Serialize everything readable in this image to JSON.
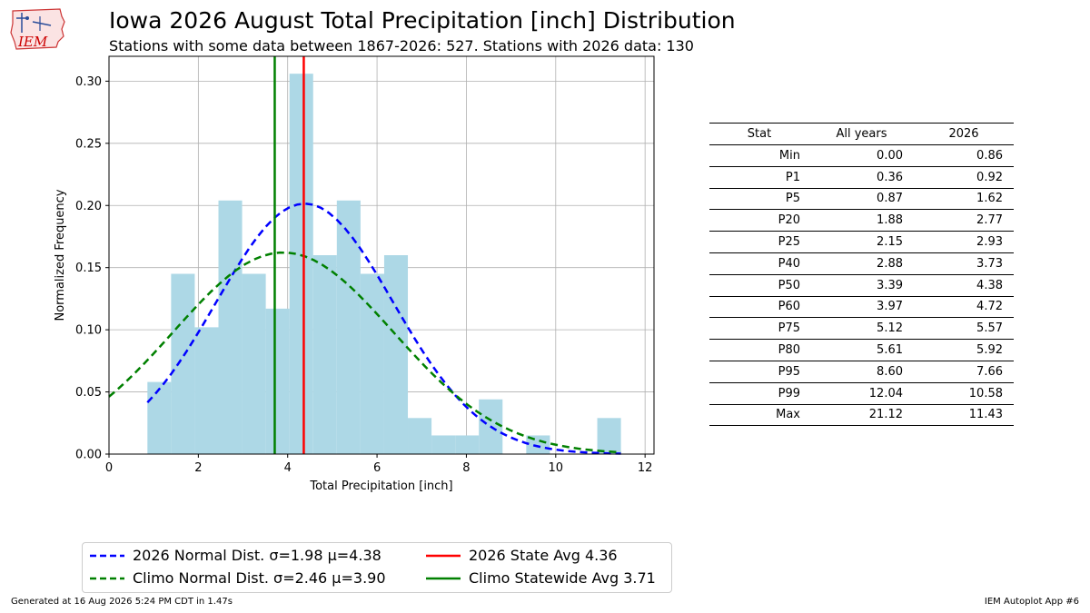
{
  "header": {
    "logo_text": "IEM",
    "title": "Iowa 2026 August Total Precipitation [inch] Distribution",
    "subtitle": "Stations with some data between 1867-2026: 527. Stations with 2026 data: 130"
  },
  "chart_data": {
    "type": "bar",
    "xlabel": "Total Precipitation [inch]",
    "ylabel": "Normalized Frequency",
    "xlim": [
      0,
      12.2
    ],
    "ylim": [
      0,
      0.32
    ],
    "xticks": [
      0,
      2,
      4,
      6,
      8,
      10,
      12
    ],
    "yticks": [
      "0.00",
      "0.05",
      "0.10",
      "0.15",
      "0.20",
      "0.25",
      "0.30"
    ],
    "grid": true,
    "histogram": {
      "bin_edges": [
        0.86,
        1.39,
        1.92,
        2.45,
        2.98,
        3.51,
        4.04,
        4.57,
        5.1,
        5.63,
        6.16,
        6.69,
        7.22,
        7.75,
        8.28,
        8.81,
        9.34,
        9.87,
        10.4,
        10.93,
        11.46
      ],
      "values": [
        0.058,
        0.145,
        0.102,
        0.204,
        0.145,
        0.117,
        0.306,
        0.16,
        0.204,
        0.145,
        0.16,
        0.029,
        0.015,
        0.015,
        0.044,
        0.0,
        0.015,
        0.0,
        0.0,
        0.029
      ],
      "color": "#add8e6"
    },
    "series": [
      {
        "name": "2026 Normal Dist. σ=1.98 μ=4.38",
        "kind": "normal",
        "mu": 4.38,
        "sigma": 1.98,
        "x_range": [
          0.86,
          11.46
        ],
        "color": "#0000ff",
        "dashed": true
      },
      {
        "name": "Climo Normal Dist. σ=2.46 μ=3.90",
        "kind": "normal",
        "mu": 3.9,
        "sigma": 2.46,
        "x_range": [
          0.0,
          11.46
        ],
        "color": "#008000",
        "dashed": true
      },
      {
        "name": "2026 State Avg 4.36",
        "kind": "vline",
        "x": 4.36,
        "color": "#ff0000"
      },
      {
        "name": "Climo Statewide Avg 3.71",
        "kind": "vline",
        "x": 3.71,
        "color": "#008000"
      }
    ],
    "legend_placement": "bottom-left, below chart"
  },
  "stats_table": {
    "headers": [
      "Stat",
      "All years",
      "2026"
    ],
    "rows": [
      [
        "Min",
        "0.00",
        "0.86"
      ],
      [
        "P1",
        "0.36",
        "0.92"
      ],
      [
        "P5",
        "0.87",
        "1.62"
      ],
      [
        "P20",
        "1.88",
        "2.77"
      ],
      [
        "P25",
        "2.15",
        "2.93"
      ],
      [
        "P40",
        "2.88",
        "3.73"
      ],
      [
        "P50",
        "3.39",
        "4.38"
      ],
      [
        "P60",
        "3.97",
        "4.72"
      ],
      [
        "P75",
        "5.12",
        "5.57"
      ],
      [
        "P80",
        "5.61",
        "5.92"
      ],
      [
        "P95",
        "8.60",
        "7.66"
      ],
      [
        "P99",
        "12.04",
        "10.58"
      ],
      [
        "Max",
        "21.12",
        "11.43"
      ]
    ]
  },
  "legend": {
    "items": [
      {
        "label": "2026 Normal Dist. σ=1.98 μ=4.38",
        "color": "#0000ff",
        "dashed": true
      },
      {
        "label": "Climo Normal Dist. σ=2.46 μ=3.90",
        "color": "#008000",
        "dashed": true
      },
      {
        "label": "2026 State Avg 4.36",
        "color": "#ff0000",
        "dashed": false
      },
      {
        "label": "Climo Statewide Avg 3.71",
        "color": "#008000",
        "dashed": false
      }
    ]
  },
  "footer": {
    "generated": "Generated at 16 Aug 2026 5:24 PM CDT in 1.47s",
    "app": "IEM Autoplot App #6"
  }
}
